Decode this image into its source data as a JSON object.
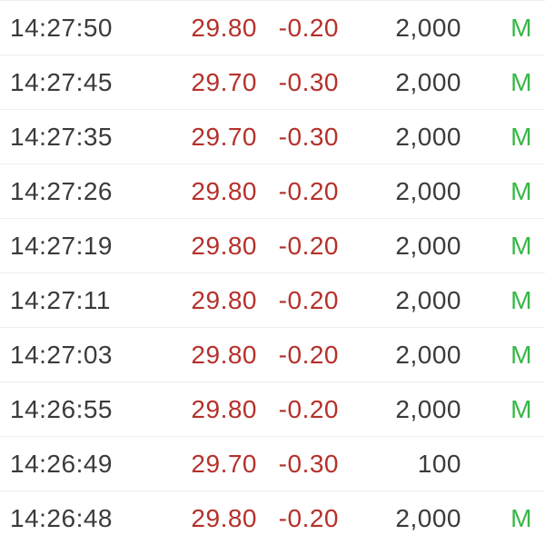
{
  "table": {
    "description": "time-and-sales-tick-list",
    "columns": [
      "time",
      "price",
      "change",
      "volume",
      "flag"
    ],
    "rows": [
      {
        "time": "14:27:50",
        "price": "29.80",
        "change": "-0.20",
        "volume": "2,000",
        "flag": "M"
      },
      {
        "time": "14:27:45",
        "price": "29.70",
        "change": "-0.30",
        "volume": "2,000",
        "flag": "M"
      },
      {
        "time": "14:27:35",
        "price": "29.70",
        "change": "-0.30",
        "volume": "2,000",
        "flag": "M"
      },
      {
        "time": "14:27:26",
        "price": "29.80",
        "change": "-0.20",
        "volume": "2,000",
        "flag": "M"
      },
      {
        "time": "14:27:19",
        "price": "29.80",
        "change": "-0.20",
        "volume": "2,000",
        "flag": "M"
      },
      {
        "time": "14:27:11",
        "price": "29.80",
        "change": "-0.20",
        "volume": "2,000",
        "flag": "M"
      },
      {
        "time": "14:27:03",
        "price": "29.80",
        "change": "-0.20",
        "volume": "2,000",
        "flag": "M"
      },
      {
        "time": "14:26:55",
        "price": "29.80",
        "change": "-0.20",
        "volume": "2,000",
        "flag": "M"
      },
      {
        "time": "14:26:49",
        "price": "29.70",
        "change": "-0.30",
        "volume": "100",
        "flag": ""
      },
      {
        "time": "14:26:48",
        "price": "29.80",
        "change": "-0.20",
        "volume": "2,000",
        "flag": "M"
      }
    ]
  },
  "colors": {
    "price_down": "#b5312b",
    "flag_green": "#35b845",
    "text_dark": "#3b3b3b",
    "separator": "#ededed",
    "background": "#ffffff"
  }
}
